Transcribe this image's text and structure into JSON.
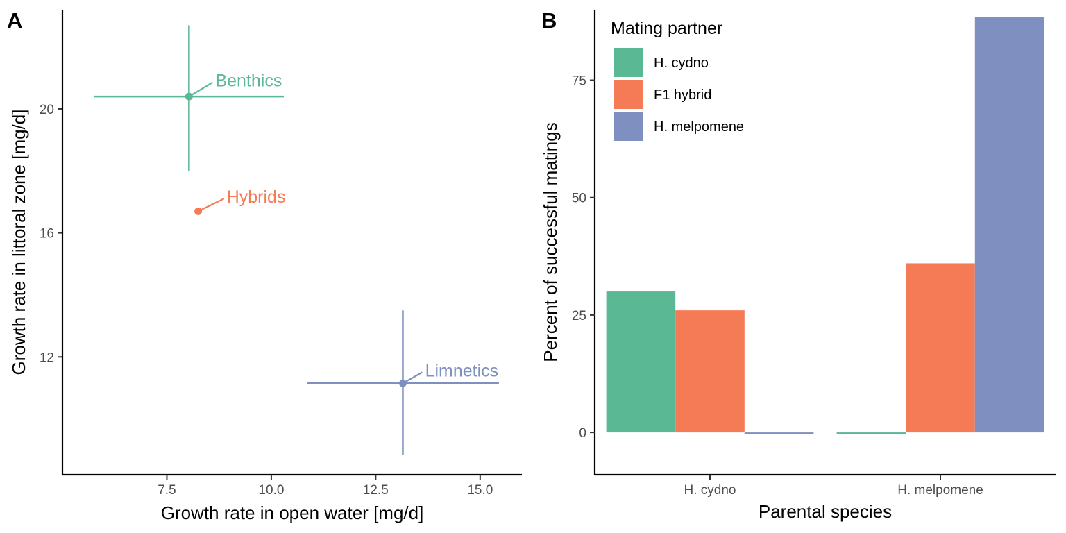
{
  "chart_data": [
    {
      "type": "scatter",
      "panel_label": "A",
      "xlabel": "Growth rate in open water [mg/d]",
      "ylabel": "Growth rate in littoral zone [mg/d]",
      "xlim": [
        5.0,
        16.0
      ],
      "ylim": [
        8.2,
        23.2
      ],
      "xticks": [
        "7.5",
        "10.0",
        "12.5",
        "15.0"
      ],
      "yticks": [
        "12",
        "16",
        "20"
      ],
      "grid": false,
      "series": [
        {
          "name": "Benthics",
          "color": "#5ab994",
          "x": 8.03,
          "y": 20.4,
          "xerr": [
            5.75,
            10.3
          ],
          "yerr": [
            18.0,
            22.7
          ],
          "label_offset": [
            0.6,
            0.5
          ]
        },
        {
          "name": "Hybrids",
          "color": "#f47b55",
          "x": 8.25,
          "y": 16.7,
          "xerr": null,
          "yerr": null,
          "label_offset": [
            0.65,
            0.45
          ]
        },
        {
          "name": "Limnetics",
          "color": "#7f8fc0",
          "x": 13.15,
          "y": 11.15,
          "xerr": [
            10.85,
            15.45
          ],
          "yerr": [
            8.85,
            13.5
          ],
          "label_offset": [
            0.5,
            0.4
          ]
        }
      ]
    },
    {
      "type": "bar",
      "panel_label": "B",
      "xlabel": "Parental species",
      "ylabel": "Percent of successful matings",
      "categories": [
        "H. cydno",
        "H. melpomene"
      ],
      "ylim": [
        -9,
        90
      ],
      "yticks": [
        "0",
        "25",
        "50",
        "75"
      ],
      "grid": false,
      "legend_title": "Mating partner",
      "legend_position": "top-left",
      "series": [
        {
          "name": "H. cydno",
          "color": "#5ab994",
          "values": [
            30,
            0
          ]
        },
        {
          "name": "F1 hybrid",
          "color": "#f47b55",
          "values": [
            26,
            36
          ]
        },
        {
          "name": "H. melpomene",
          "color": "#7f8fc0",
          "values": [
            0,
            88.5
          ]
        }
      ]
    }
  ]
}
